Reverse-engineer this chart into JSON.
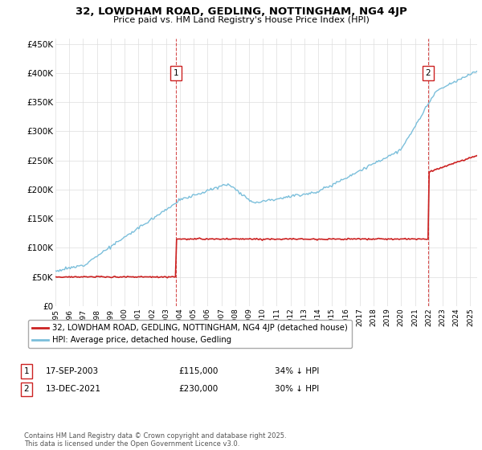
{
  "title": "32, LOWDHAM ROAD, GEDLING, NOTTINGHAM, NG4 4JP",
  "subtitle": "Price paid vs. HM Land Registry's House Price Index (HPI)",
  "ylabel_ticks": [
    "£0",
    "£50K",
    "£100K",
    "£150K",
    "£200K",
    "£250K",
    "£300K",
    "£350K",
    "£400K",
    "£450K"
  ],
  "ytick_values": [
    0,
    50000,
    100000,
    150000,
    200000,
    250000,
    300000,
    350000,
    400000,
    450000
  ],
  "ylim": [
    0,
    460000
  ],
  "xlim_start": 1995.0,
  "xlim_end": 2025.5,
  "hpi_color": "#7bbfdb",
  "price_color": "#cc2222",
  "vline_color": "#cc2222",
  "background_color": "#ffffff",
  "grid_color": "#dddddd",
  "ann1_x": 2003.72,
  "ann1_y": 115000,
  "ann1_label": "1",
  "ann1_date": "17-SEP-2003",
  "ann1_price": "£115,000",
  "ann1_pct": "34% ↓ HPI",
  "ann2_x": 2021.95,
  "ann2_y": 230000,
  "ann2_label": "2",
  "ann2_date": "13-DEC-2021",
  "ann2_price": "£230,000",
  "ann2_pct": "30% ↓ HPI",
  "legend_line1": "32, LOWDHAM ROAD, GEDLING, NOTTINGHAM, NG4 4JP (detached house)",
  "legend_line2": "HPI: Average price, detached house, Gedling",
  "footer": "Contains HM Land Registry data © Crown copyright and database right 2025.\nThis data is licensed under the Open Government Licence v3.0.",
  "xtick_years": [
    1995,
    1996,
    1997,
    1998,
    1999,
    2000,
    2001,
    2002,
    2003,
    2004,
    2005,
    2006,
    2007,
    2008,
    2009,
    2010,
    2011,
    2012,
    2013,
    2014,
    2015,
    2016,
    2017,
    2018,
    2019,
    2020,
    2021,
    2022,
    2023,
    2024,
    2025
  ]
}
